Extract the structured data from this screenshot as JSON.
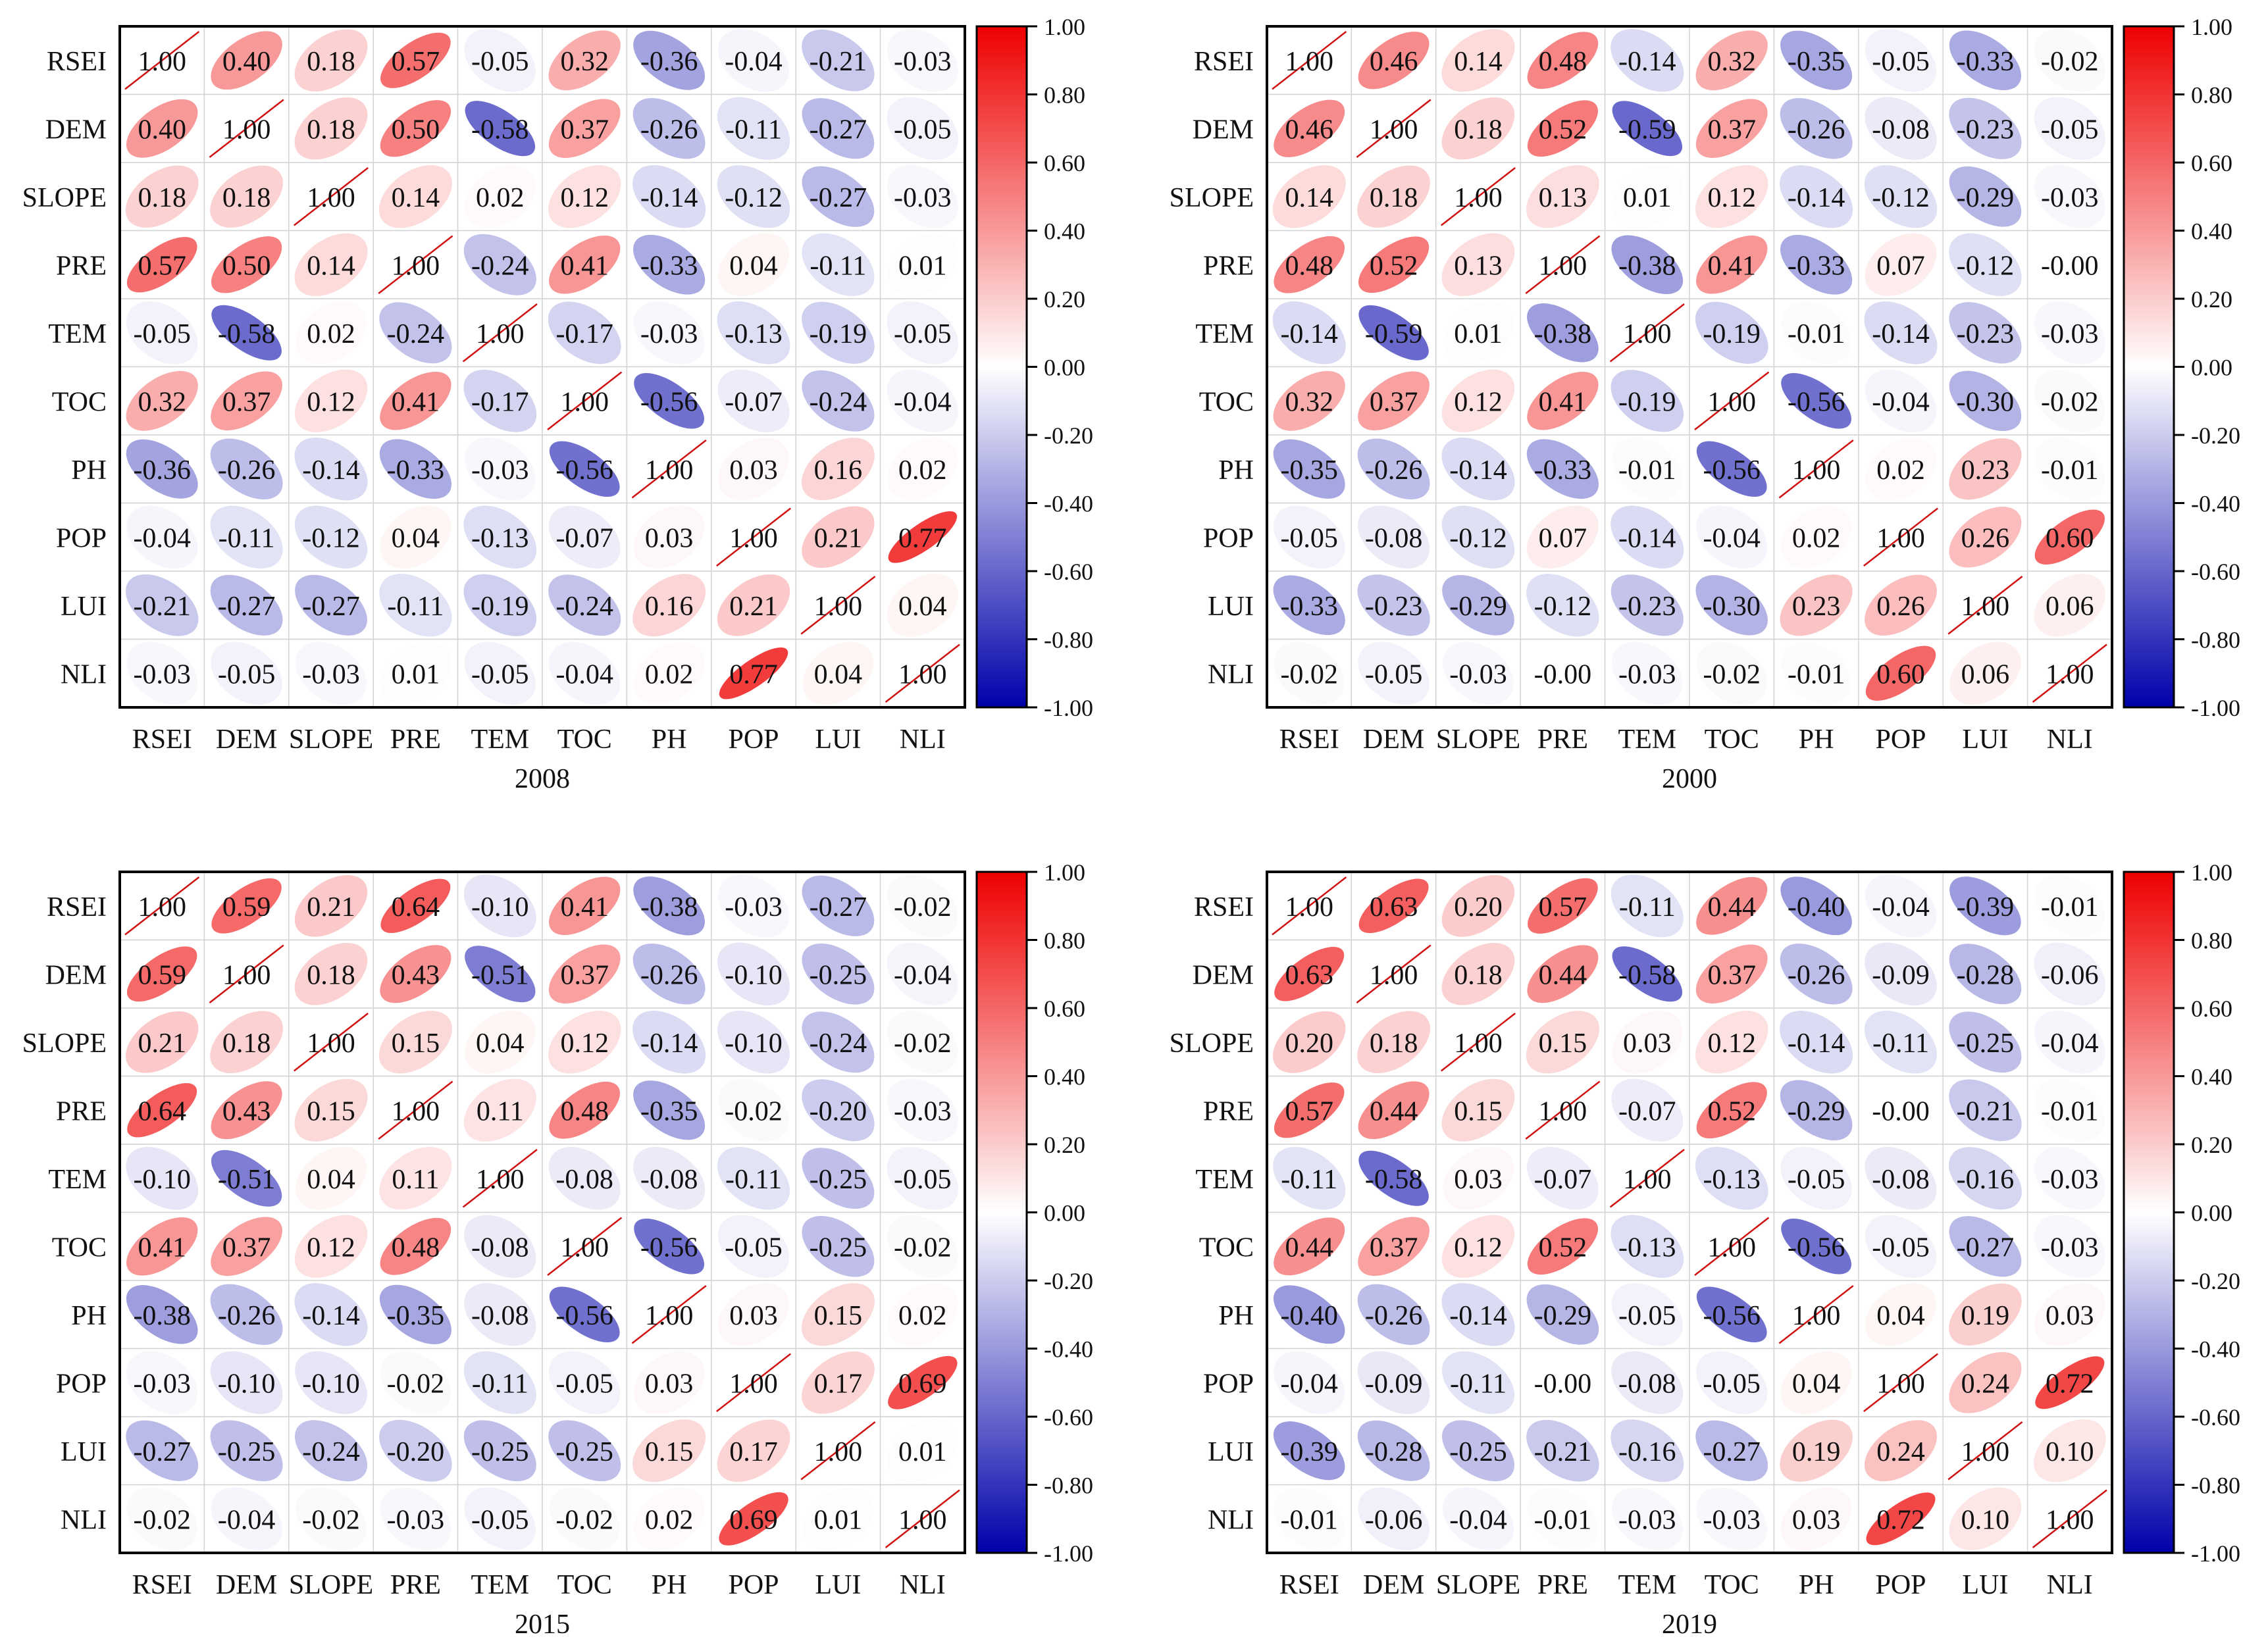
{
  "chart_data": {
    "type": "heatmap",
    "variables": [
      "RSEI",
      "DEM",
      "SLOPE",
      "PRE",
      "TEM",
      "TOC",
      "PH",
      "POP",
      "LUI",
      "NLI"
    ],
    "colorbar": {
      "range": [
        -1,
        1
      ],
      "ticks": [
        "1.00",
        "0.80",
        "0.60",
        "0.40",
        "0.20",
        "0.00",
        "-0.20",
        "-0.40",
        "-0.60",
        "-0.80",
        "-1.00"
      ],
      "colors": {
        "neg": "#0000aa",
        "mid": "#ffffff",
        "pos": "#ee0000"
      }
    },
    "panels": [
      {
        "title": "2008",
        "matrix": [
          [
            "1.00",
            "0.40",
            "0.18",
            "0.57",
            "-0.05",
            "0.32",
            "-0.36",
            "-0.04",
            "-0.21",
            "-0.03"
          ],
          [
            "0.40",
            "1.00",
            "0.18",
            "0.50",
            "-0.58",
            "0.37",
            "-0.26",
            "-0.11",
            "-0.27",
            "-0.05"
          ],
          [
            "0.18",
            "0.18",
            "1.00",
            "0.14",
            "0.02",
            "0.12",
            "-0.14",
            "-0.12",
            "-0.27",
            "-0.03"
          ],
          [
            "0.57",
            "0.50",
            "0.14",
            "1.00",
            "-0.24",
            "0.41",
            "-0.33",
            "0.04",
            "-0.11",
            "0.01"
          ],
          [
            "-0.05",
            "-0.58",
            "0.02",
            "-0.24",
            "1.00",
            "-0.17",
            "-0.03",
            "-0.13",
            "-0.19",
            "-0.05"
          ],
          [
            "0.32",
            "0.37",
            "0.12",
            "0.41",
            "-0.17",
            "1.00",
            "-0.56",
            "-0.07",
            "-0.24",
            "-0.04"
          ],
          [
            "-0.36",
            "-0.26",
            "-0.14",
            "-0.33",
            "-0.03",
            "-0.56",
            "1.00",
            "0.03",
            "0.16",
            "0.02"
          ],
          [
            "-0.04",
            "-0.11",
            "-0.12",
            "0.04",
            "-0.13",
            "-0.07",
            "0.03",
            "1.00",
            "0.21",
            "0.77"
          ],
          [
            "-0.21",
            "-0.27",
            "-0.27",
            "-0.11",
            "-0.19",
            "-0.24",
            "0.16",
            "0.21",
            "1.00",
            "0.04"
          ],
          [
            "-0.03",
            "-0.05",
            "-0.03",
            "0.01",
            "-0.05",
            "-0.04",
            "0.02",
            "0.77",
            "0.04",
            "1.00"
          ]
        ]
      },
      {
        "title": "2000",
        "matrix": [
          [
            "1.00",
            "0.46",
            "0.14",
            "0.48",
            "-0.14",
            "0.32",
            "-0.35",
            "-0.05",
            "-0.33",
            "-0.02"
          ],
          [
            "0.46",
            "1.00",
            "0.18",
            "0.52",
            "-0.59",
            "0.37",
            "-0.26",
            "-0.08",
            "-0.23",
            "-0.05"
          ],
          [
            "0.14",
            "0.18",
            "1.00",
            "0.13",
            "0.01",
            "0.12",
            "-0.14",
            "-0.12",
            "-0.29",
            "-0.03"
          ],
          [
            "0.48",
            "0.52",
            "0.13",
            "1.00",
            "-0.38",
            "0.41",
            "-0.33",
            "0.07",
            "-0.12",
            "-0.00"
          ],
          [
            "-0.14",
            "-0.59",
            "0.01",
            "-0.38",
            "1.00",
            "-0.19",
            "-0.01",
            "-0.14",
            "-0.23",
            "-0.03"
          ],
          [
            "0.32",
            "0.37",
            "0.12",
            "0.41",
            "-0.19",
            "1.00",
            "-0.56",
            "-0.04",
            "-0.30",
            "-0.02"
          ],
          [
            "-0.35",
            "-0.26",
            "-0.14",
            "-0.33",
            "-0.01",
            "-0.56",
            "1.00",
            "0.02",
            "0.23",
            "-0.01"
          ],
          [
            "-0.05",
            "-0.08",
            "-0.12",
            "0.07",
            "-0.14",
            "-0.04",
            "0.02",
            "1.00",
            "0.26",
            "0.60"
          ],
          [
            "-0.33",
            "-0.23",
            "-0.29",
            "-0.12",
            "-0.23",
            "-0.30",
            "0.23",
            "0.26",
            "1.00",
            "0.06"
          ],
          [
            "-0.02",
            "-0.05",
            "-0.03",
            "-0.00",
            "-0.03",
            "-0.02",
            "-0.01",
            "0.60",
            "0.06",
            "1.00"
          ]
        ]
      },
      {
        "title": "2015",
        "matrix": [
          [
            "1.00",
            "0.59",
            "0.21",
            "0.64",
            "-0.10",
            "0.41",
            "-0.38",
            "-0.03",
            "-0.27",
            "-0.02"
          ],
          [
            "0.59",
            "1.00",
            "0.18",
            "0.43",
            "-0.51",
            "0.37",
            "-0.26",
            "-0.10",
            "-0.25",
            "-0.04"
          ],
          [
            "0.21",
            "0.18",
            "1.00",
            "0.15",
            "0.04",
            "0.12",
            "-0.14",
            "-0.10",
            "-0.24",
            "-0.02"
          ],
          [
            "0.64",
            "0.43",
            "0.15",
            "1.00",
            "0.11",
            "0.48",
            "-0.35",
            "-0.02",
            "-0.20",
            "-0.03"
          ],
          [
            "-0.10",
            "-0.51",
            "0.04",
            "0.11",
            "1.00",
            "-0.08",
            "-0.08",
            "-0.11",
            "-0.25",
            "-0.05"
          ],
          [
            "0.41",
            "0.37",
            "0.12",
            "0.48",
            "-0.08",
            "1.00",
            "-0.56",
            "-0.05",
            "-0.25",
            "-0.02"
          ],
          [
            "-0.38",
            "-0.26",
            "-0.14",
            "-0.35",
            "-0.08",
            "-0.56",
            "1.00",
            "0.03",
            "0.15",
            "0.02"
          ],
          [
            "-0.03",
            "-0.10",
            "-0.10",
            "-0.02",
            "-0.11",
            "-0.05",
            "0.03",
            "1.00",
            "0.17",
            "0.69"
          ],
          [
            "-0.27",
            "-0.25",
            "-0.24",
            "-0.20",
            "-0.25",
            "-0.25",
            "0.15",
            "0.17",
            "1.00",
            "0.01"
          ],
          [
            "-0.02",
            "-0.04",
            "-0.02",
            "-0.03",
            "-0.05",
            "-0.02",
            "0.02",
            "0.69",
            "0.01",
            "1.00"
          ]
        ]
      },
      {
        "title": "2019",
        "matrix": [
          [
            "1.00",
            "0.63",
            "0.20",
            "0.57",
            "-0.11",
            "0.44",
            "-0.40",
            "-0.04",
            "-0.39",
            "-0.01"
          ],
          [
            "0.63",
            "1.00",
            "0.18",
            "0.44",
            "-0.58",
            "0.37",
            "-0.26",
            "-0.09",
            "-0.28",
            "-0.06"
          ],
          [
            "0.20",
            "0.18",
            "1.00",
            "0.15",
            "0.03",
            "0.12",
            "-0.14",
            "-0.11",
            "-0.25",
            "-0.04"
          ],
          [
            "0.57",
            "0.44",
            "0.15",
            "1.00",
            "-0.07",
            "0.52",
            "-0.29",
            "-0.00",
            "-0.21",
            "-0.01"
          ],
          [
            "-0.11",
            "-0.58",
            "0.03",
            "-0.07",
            "1.00",
            "-0.13",
            "-0.05",
            "-0.08",
            "-0.16",
            "-0.03"
          ],
          [
            "0.44",
            "0.37",
            "0.12",
            "0.52",
            "-0.13",
            "1.00",
            "-0.56",
            "-0.05",
            "-0.27",
            "-0.03"
          ],
          [
            "-0.40",
            "-0.26",
            "-0.14",
            "-0.29",
            "-0.05",
            "-0.56",
            "1.00",
            "0.04",
            "0.19",
            "0.03"
          ],
          [
            "-0.04",
            "-0.09",
            "-0.11",
            "-0.00",
            "-0.08",
            "-0.05",
            "0.04",
            "1.00",
            "0.24",
            "0.72"
          ],
          [
            "-0.39",
            "-0.28",
            "-0.25",
            "-0.21",
            "-0.16",
            "-0.27",
            "0.19",
            "0.24",
            "1.00",
            "0.10"
          ],
          [
            "-0.01",
            "-0.06",
            "-0.04",
            "-0.01",
            "-0.03",
            "-0.03",
            "0.03",
            "0.72",
            "0.10",
            "1.00"
          ]
        ]
      }
    ]
  }
}
